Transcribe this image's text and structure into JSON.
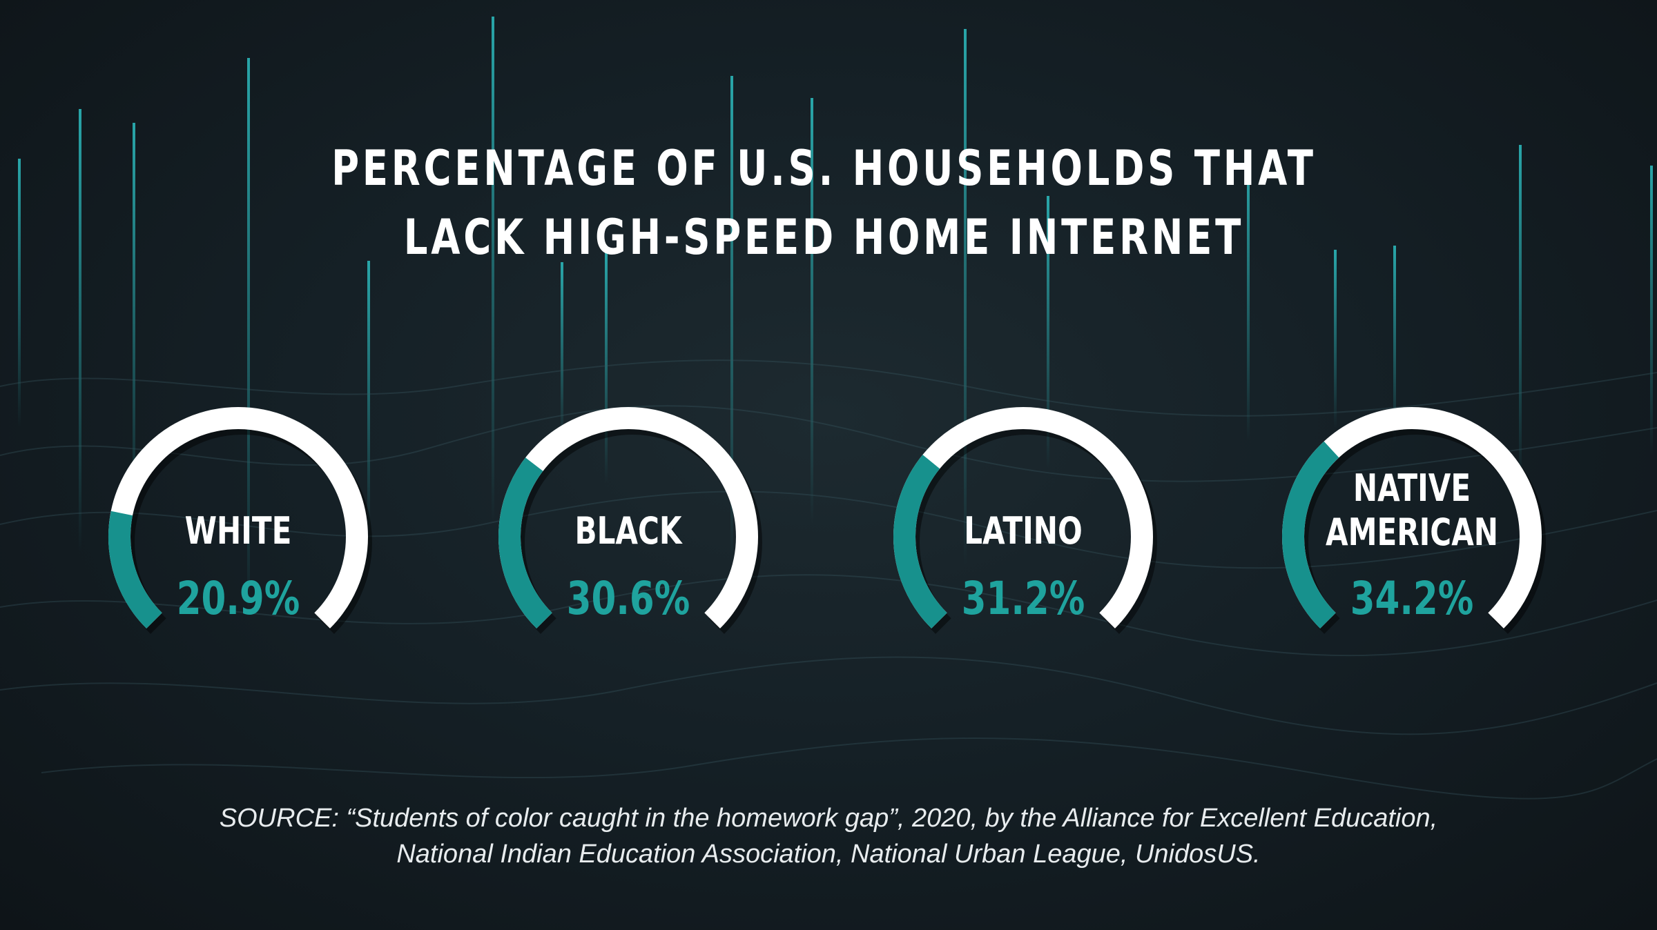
{
  "title": {
    "line1": "PERCENTAGE OF U.S. HOUSEHOLDS THAT",
    "line2": "LACK HIGH-SPEED HOME INTERNET"
  },
  "colors": {
    "background": "#152026",
    "accent": "#17918d",
    "track": "#ffffff",
    "value_text": "#1fa39e",
    "label_text": "#ffffff",
    "background_lines": "#2bb5b8"
  },
  "chart_data": {
    "type": "gauge",
    "title": "PERCENTAGE OF U.S. HOUSEHOLDS THAT LACK HIGH-SPEED HOME INTERNET",
    "unit": "%",
    "range": [
      0,
      100
    ],
    "series": [
      {
        "label_lines": [
          "WHITE"
        ],
        "value": 20.9,
        "value_label": "20.9%"
      },
      {
        "label_lines": [
          "BLACK"
        ],
        "value": 30.6,
        "value_label": "30.6%"
      },
      {
        "label_lines": [
          "LATINO"
        ],
        "value": 31.2,
        "value_label": "31.2%"
      },
      {
        "label_lines": [
          "NATIVE",
          "AMERICAN"
        ],
        "value": 34.2,
        "value_label": "34.2%"
      }
    ]
  },
  "source": {
    "line1": "SOURCE:  “Students of color caught in the homework gap”, 2020, by the Alliance for Excellent Education,",
    "line2": "National Indian Education Association, National Urban League, UnidosUS."
  }
}
